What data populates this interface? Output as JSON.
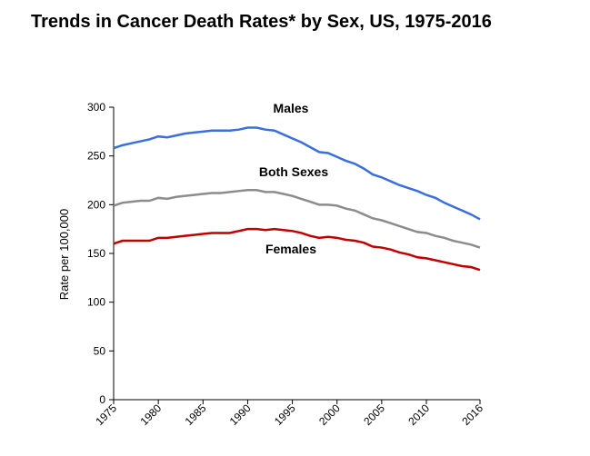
{
  "chart_data": {
    "type": "line",
    "title": "Trends in Cancer Death Rates* by Sex, US, 1975-2016",
    "y_label": "Rate per 100,000",
    "x": [
      1975,
      1976,
      1977,
      1978,
      1979,
      1980,
      1981,
      1982,
      1983,
      1984,
      1985,
      1986,
      1987,
      1988,
      1989,
      1990,
      1991,
      1992,
      1993,
      1994,
      1995,
      1996,
      1997,
      1998,
      1999,
      2000,
      2001,
      2002,
      2003,
      2004,
      2005,
      2006,
      2007,
      2008,
      2009,
      2010,
      2011,
      2012,
      2013,
      2014,
      2015,
      2016
    ],
    "series": [
      {
        "name": "Males",
        "color": "#3a6fdc",
        "values": [
          258,
          261,
          263,
          265,
          267,
          270,
          269,
          271,
          273,
          274,
          275,
          276,
          276,
          276,
          277,
          279,
          279,
          277,
          276,
          272,
          268,
          264,
          259,
          254,
          253,
          249,
          245,
          242,
          237,
          231,
          228,
          224,
          220,
          217,
          214,
          210,
          207,
          202,
          198,
          194,
          190,
          185
        ]
      },
      {
        "name": "Both Sexes",
        "color": "#8c8c8c",
        "values": [
          199,
          202,
          203,
          204,
          204,
          207,
          206,
          208,
          209,
          210,
          211,
          212,
          212,
          213,
          214,
          215,
          215,
          213,
          213,
          211,
          209,
          206,
          203,
          200,
          200,
          199,
          196,
          194,
          190,
          186,
          184,
          181,
          178,
          175,
          172,
          171,
          168,
          166,
          163,
          161,
          159,
          156
        ]
      },
      {
        "name": "Females",
        "color": "#c00000",
        "values": [
          160,
          163,
          163,
          163,
          163,
          166,
          166,
          167,
          168,
          169,
          170,
          171,
          171,
          171,
          173,
          175,
          175,
          174,
          175,
          174,
          173,
          171,
          168,
          166,
          167,
          166,
          164,
          163,
          161,
          157,
          156,
          154,
          151,
          149,
          146,
          145,
          143,
          141,
          139,
          137,
          136,
          133
        ]
      }
    ],
    "xlim": [
      1975,
      2016
    ],
    "xticks": [
      1975,
      1980,
      1985,
      1990,
      1995,
      2000,
      2005,
      2010,
      2016
    ],
    "ylim": [
      0,
      300
    ],
    "yticks": [
      0,
      50,
      100,
      150,
      200,
      250,
      300
    ]
  }
}
